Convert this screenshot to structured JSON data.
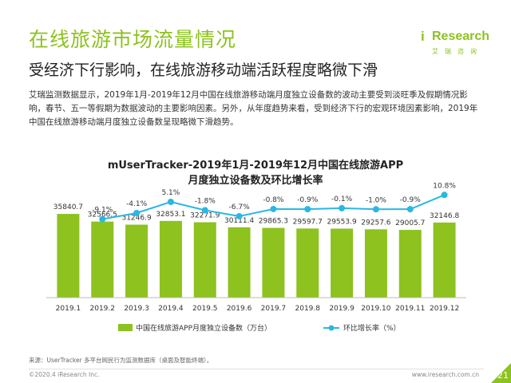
{
  "title": "在线旅游市场流量情况",
  "subtitle": "受经济下行影响，在线旅游移动端活跃程度略微下滑",
  "logo": {
    "mark": "i",
    "text": "Research",
    "cn": "艾瑞咨询"
  },
  "paragraph": "艾瑞监测数据显示，2019年1月-2019年12月中国在线旅游移动端月度独立设备数的波动主要受到淡旺季及假期情况影响，春节、五一等假期为数据波动的主要影响因素。另外，从年度趋势来看，受到经济下行的宏观环境因素影响，2019年中国在线旅游移动端月度独立设备数呈现略微下滑趋势。",
  "chart_data": {
    "type": "bar",
    "title": "mUserTracker-2019年1月-2019年12月中国在线旅游APP",
    "subtitle": "月度独立设备数及环比增长率",
    "categories": [
      "2019.1",
      "2019.2",
      "2019.3",
      "2019.4",
      "2019.5",
      "2019.6",
      "2019.7",
      "2019.8",
      "2019.9",
      "2019.10",
      "2019.11",
      "2019.12"
    ],
    "series": [
      {
        "name": "中国在线旅游APP月度独立设备数（万台）",
        "type": "bar",
        "color": "#8dc21f",
        "values": [
          35840.7,
          32566.5,
          31246.9,
          32853.1,
          32271.9,
          30111.4,
          29865.3,
          29597.7,
          29553.9,
          29257.6,
          29005.7,
          32146.8
        ],
        "labels": [
          "35840.7",
          "32566.5",
          "31246.9",
          "32853.1",
          "32271.9",
          "30111.4",
          "29865.3",
          "29597.7",
          "29553.9",
          "29257.6",
          "29005.7",
          "32146.8"
        ]
      },
      {
        "name": "环比增长率（%）",
        "type": "line",
        "color": "#2ab7e4",
        "values": [
          null,
          -9.1,
          -4.1,
          5.1,
          -1.8,
          -6.7,
          -0.8,
          -0.9,
          -0.1,
          -1.0,
          -0.9,
          10.8
        ],
        "labels": [
          "",
          "-9.1%",
          "-4.1%",
          "5.1%",
          "-1.8%",
          "-6.7%",
          "-0.8%",
          "-0.9%",
          "-0.1%",
          "-1.0%",
          "-0.9%",
          "10.8%"
        ]
      }
    ],
    "legend_position": "bottom",
    "grid": false
  },
  "source": "来源：UserTracker 多平台网民行为监测数据库（桌面及智能终端）。",
  "copyright": "©2020.4 iResearch Inc.",
  "url": "www.iresearch.com.cn",
  "page_number": "21"
}
